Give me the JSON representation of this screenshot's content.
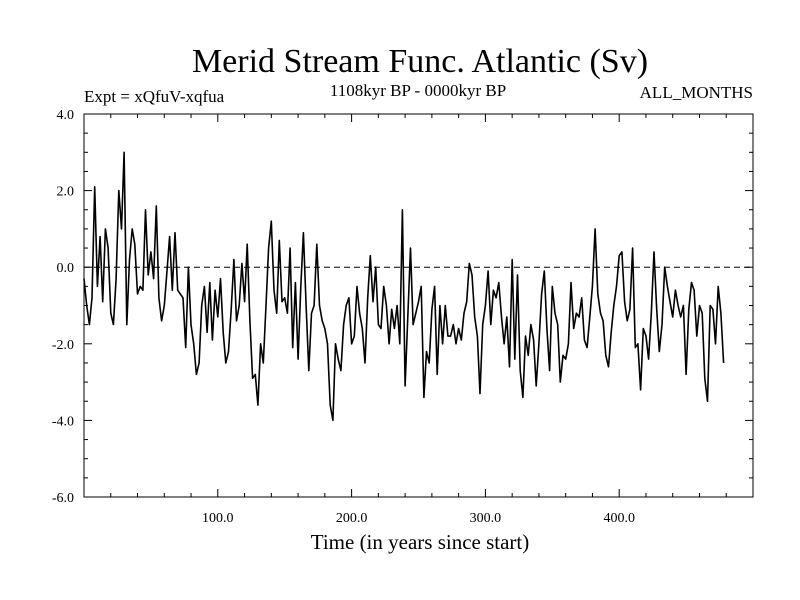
{
  "chart_data": {
    "type": "line",
    "title": "Merid Stream Func. Atlantic (Sv)",
    "subtitle_left": "Expt = xQfuV-xqfua",
    "subtitle_center": "1108kyr BP - 0000kyr BP",
    "subtitle_right": "ALL_MONTHS",
    "xlabel": "Time (in years since start)",
    "ylabel": "",
    "xlim": [
      0,
      500
    ],
    "ylim": [
      -6,
      4
    ],
    "xticks": [
      100,
      200,
      300,
      400
    ],
    "xtick_labels": [
      "100.0",
      "200.0",
      "300.0",
      "400.0"
    ],
    "yticks": [
      -6,
      -4,
      -2,
      0,
      2,
      4
    ],
    "ytick_labels": [
      "-6.0",
      "-4.0",
      "-2.0",
      "0.0",
      "2.0",
      "4.0"
    ],
    "zero_line": {
      "y": 0,
      "style": "dashed"
    },
    "series": [
      {
        "name": "Merid Stream Func. Atlantic",
        "x_start": 0,
        "x_step": 2,
        "values": [
          -0.3,
          -1.0,
          -1.5,
          -0.8,
          2.1,
          -0.5,
          0.8,
          -0.9,
          1.0,
          0.5,
          -1.2,
          -1.5,
          -0.3,
          2.0,
          1.0,
          3.0,
          -1.5,
          0.2,
          1.0,
          0.6,
          -0.7,
          -0.5,
          -0.6,
          1.5,
          -0.2,
          0.4,
          -0.3,
          1.6,
          -0.8,
          -1.4,
          -1.0,
          -0.1,
          0.8,
          -0.6,
          0.9,
          -0.6,
          -0.7,
          -0.8,
          -2.1,
          0.0,
          -1.5,
          -2.0,
          -2.8,
          -2.5,
          -1.0,
          -0.5,
          -1.7,
          -0.4,
          -1.9,
          -0.6,
          -1.3,
          -0.3,
          -1.7,
          -2.5,
          -2.2,
          -1.1,
          0.2,
          -1.4,
          -1.0,
          0.1,
          -0.9,
          0.6,
          -1.4,
          -2.9,
          -2.8,
          -3.6,
          -2.0,
          -2.5,
          -1.0,
          0.5,
          1.2,
          -0.6,
          -1.2,
          0.7,
          -0.9,
          -0.8,
          -1.2,
          0.5,
          -2.1,
          -0.4,
          -2.4,
          -0.5,
          0.9,
          -1.0,
          -2.7,
          -1.2,
          -1.0,
          0.6,
          -1.0,
          -1.4,
          -1.6,
          -2.0,
          -3.6,
          -4.0,
          -2.0,
          -2.4,
          -2.7,
          -1.5,
          -1.0,
          -0.8,
          -2.0,
          -1.8,
          -0.5,
          -1.2,
          -1.6,
          -2.5,
          -0.8,
          0.3,
          -0.9,
          0.0,
          -1.5,
          -1.6,
          -0.5,
          -1.0,
          -2.0,
          -1.1,
          -1.6,
          -1.0,
          -2.0,
          1.5,
          -3.1,
          -1.3,
          0.5,
          -1.5,
          -1.2,
          -0.9,
          -0.5,
          -3.4,
          -2.2,
          -2.5,
          -1.1,
          -0.5,
          -2.8,
          -1.0,
          -2.0,
          -1.0,
          -1.8,
          -1.8,
          -1.5,
          -2.0,
          -1.6,
          -1.9,
          -1.2,
          -0.9,
          0.1,
          -0.2,
          -1.3,
          -1.8,
          -3.3,
          -1.5,
          -1.0,
          -0.1,
          -1.5,
          -0.6,
          -0.8,
          -0.4,
          -1.3,
          -2.0,
          -1.3,
          -2.6,
          0.2,
          -2.4,
          -0.2,
          -2.7,
          -3.4,
          -1.8,
          -2.3,
          -1.5,
          -1.9,
          -3.1,
          -2.0,
          -0.7,
          -0.1,
          -1.6,
          -2.7,
          -0.5,
          -1.2,
          -1.5,
          -3.0,
          -2.3,
          -2.4,
          -2.0,
          -0.4,
          -1.6,
          -1.2,
          -1.3,
          -0.8,
          -1.9,
          -2.1,
          -1.3,
          -0.5,
          1.0,
          -0.7,
          -1.2,
          -1.4,
          -2.3,
          -2.6,
          -1.7,
          -1.0,
          -0.5,
          0.3,
          0.4,
          -0.9,
          -1.4,
          -1.1,
          0.5,
          -2.1,
          -2.0,
          -3.2,
          -1.6,
          -1.8,
          -2.4,
          -1.2,
          0.4,
          -1.1,
          -2.2,
          -1.5,
          0.0,
          -0.5,
          -0.9,
          -1.3,
          -0.6,
          -1.0,
          -1.3,
          -1.0,
          -2.8,
          -1.1,
          -0.4,
          -0.6,
          -1.8,
          -1.0,
          -1.2,
          -2.9,
          -3.5,
          -1.0,
          -1.1,
          -2.0,
          -0.5,
          -1.2,
          -2.5
        ]
      }
    ]
  }
}
